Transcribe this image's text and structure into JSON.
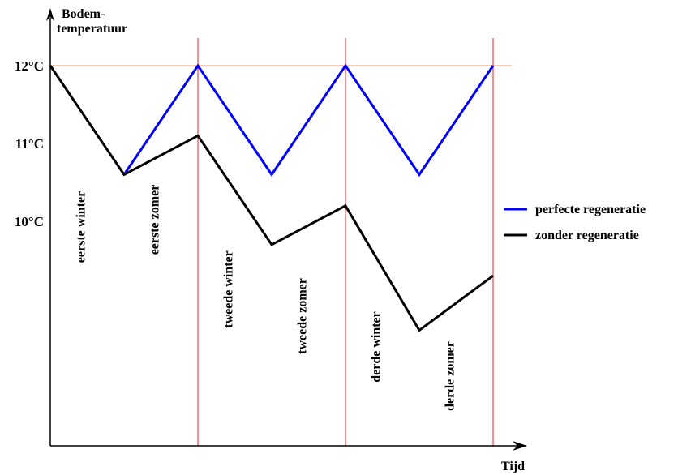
{
  "chart_data": {
    "type": "line",
    "title": "",
    "ylabel_lines": [
      "Bodem-",
      "temperatuur"
    ],
    "xlabel": "Tijd",
    "y_ticks": [
      {
        "value": 12,
        "label": "12°C"
      },
      {
        "value": 11,
        "label": "11°C"
      },
      {
        "value": 10,
        "label": "10°C"
      }
    ],
    "ylim": [
      7,
      12.3
    ],
    "xlim": [
      0,
      6.25
    ],
    "periods": [
      {
        "label": "eerste winter",
        "x": 0.5
      },
      {
        "label": "eerste zomer",
        "x": 1.5
      },
      {
        "label": "tweede winter",
        "x": 2.5
      },
      {
        "label": "tweede zomer",
        "x": 3.5
      },
      {
        "label": "derde winter",
        "x": 4.5
      },
      {
        "label": "derde zomer",
        "x": 5.5
      }
    ],
    "year_boundaries": [
      2,
      4,
      6
    ],
    "reference_level": 12,
    "series": [
      {
        "name": "perfecte regeneratie",
        "color": "#0000ff",
        "points": [
          [
            1,
            10.6
          ],
          [
            2,
            12
          ],
          [
            3,
            10.6
          ],
          [
            4,
            12
          ],
          [
            5,
            10.6
          ],
          [
            6,
            12
          ]
        ]
      },
      {
        "name": "zonder regeneratie",
        "color": "#000000",
        "points": [
          [
            0,
            12
          ],
          [
            1,
            10.6
          ],
          [
            2,
            11.1
          ],
          [
            3,
            9.7
          ],
          [
            4,
            10.2
          ],
          [
            5,
            8.6
          ],
          [
            6,
            9.3
          ]
        ]
      }
    ],
    "grid": false,
    "legend_position": "right"
  }
}
